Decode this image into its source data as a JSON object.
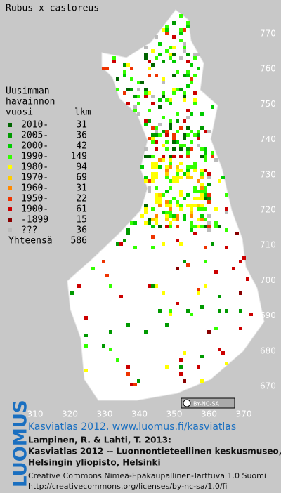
{
  "title": "Rubus x castoreus",
  "legend": {
    "heading": [
      "Uusimman",
      "havainnon",
      "vuosi"
    ],
    "count_heading": "lkm",
    "rows": [
      {
        "label": "2010-",
        "count": "31",
        "color": "#006400"
      },
      {
        "label": "2005-",
        "count": "36",
        "color": "#009900"
      },
      {
        "label": "2000-",
        "count": "42",
        "color": "#00cc00"
      },
      {
        "label": "1990-",
        "count": "149",
        "color": "#33ff00"
      },
      {
        "label": "1980-",
        "count": "94",
        "color": "#ffff00"
      },
      {
        "label": "1970-",
        "count": "69",
        "color": "#ffcc00"
      },
      {
        "label": "1960-",
        "count": "31",
        "color": "#ff8800"
      },
      {
        "label": "1950-",
        "count": "22",
        "color": "#ee3300"
      },
      {
        "label": "1900-",
        "count": "61",
        "color": "#cc0000"
      },
      {
        "label": "-1899",
        "count": "15",
        "color": "#880000"
      },
      {
        "label": "???",
        "count": "36",
        "color": "#bbbbbb"
      }
    ],
    "total_label": "Yhteensä",
    "total": "586"
  },
  "y_labels": [
    "770",
    "760",
    "750",
    "740",
    "730",
    "720",
    "710",
    "700",
    "690",
    "680",
    "670"
  ],
  "x_labels": [
    "310",
    "320",
    "330",
    "340",
    "350",
    "360",
    "370"
  ],
  "license_badge": "BY-NC-SA",
  "logo": "LUOMUS",
  "footer": {
    "link": "Kasviatlas 2012, www.luomus.fi/kasviatlas",
    "citation": [
      "Lampinen, R. & Lahti, T. 2013:",
      "Kasviatlas 2012 -- Luonnontieteellinen keskusmuseo,",
      "Helsingin yliopisto, Helsinki"
    ],
    "license": [
      "Creative Commons Nimeä-Epäkaupallinen-Tarttuva 1.0 Suomi",
      "http://creativecommons.org/licenses/by-nc-sa/1.0/fi"
    ]
  }
}
